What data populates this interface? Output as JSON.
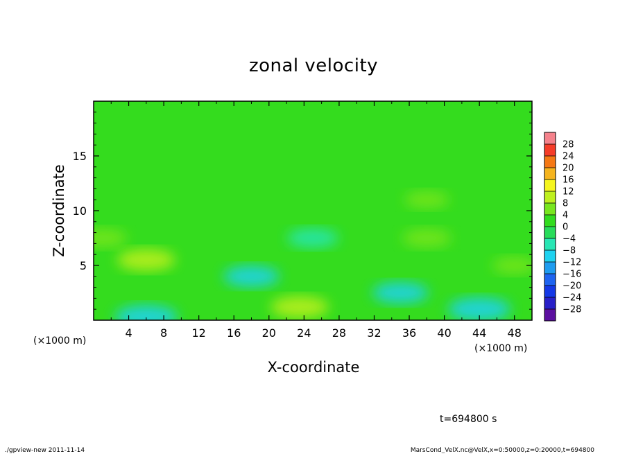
{
  "chart_data": {
    "type": "heatmap",
    "title": "zonal velocity",
    "xlabel": "X-coordinate",
    "ylabel": "Z-coordinate",
    "x_unit_label": "(×1000 m)",
    "y_unit_label": "(×1000 m)",
    "xlim": [
      0,
      50
    ],
    "ylim": [
      0,
      20
    ],
    "x_ticks": [
      "4",
      "8",
      "12",
      "16",
      "20",
      "24",
      "28",
      "32",
      "36",
      "40",
      "44",
      "48"
    ],
    "y_ticks": [
      "5",
      "10",
      "15"
    ],
    "colorbar": {
      "levels": [
        -32,
        -28,
        -24,
        -20,
        -16,
        -12,
        -8,
        -4,
        0,
        4,
        8,
        12,
        16,
        20,
        24,
        28,
        32
      ],
      "labels": [
        "28",
        "24",
        "20",
        "16",
        "12",
        "8",
        "4",
        "0",
        "−4",
        "−8",
        "−12",
        "−16",
        "−20",
        "−24",
        "−28"
      ],
      "colors": [
        "#5c0fa0",
        "#2820c8",
        "#1438e6",
        "#1e64f0",
        "#1e9cf0",
        "#1ed2f0",
        "#28e6b4",
        "#28dc5a",
        "#32dc1e",
        "#78e61e",
        "#bef01e",
        "#f5f51e",
        "#f5b41e",
        "#f57814",
        "#f53c28",
        "#f5828c"
      ]
    },
    "features": [
      {
        "x": 6,
        "z": 5.5,
        "value": 10
      },
      {
        "x": 23.5,
        "z": 1.2,
        "value": 10
      },
      {
        "x": 18,
        "z": 4,
        "value": -9
      },
      {
        "x": 25,
        "z": 7.5,
        "value": -7
      },
      {
        "x": 35,
        "z": 2.5,
        "value": -9
      },
      {
        "x": 44,
        "z": 1,
        "value": -12
      },
      {
        "x": 6,
        "z": 0.3,
        "value": -12
      },
      {
        "x": 38,
        "z": 7.5,
        "value": 6
      },
      {
        "x": 1,
        "z": 7.5,
        "value": 6
      },
      {
        "x": 38,
        "z": 11,
        "value": 4
      },
      {
        "x": 48,
        "z": 5,
        "value": 4
      }
    ],
    "annotation_time": "t=694800 s"
  },
  "footer": {
    "left": "./gpview-new  2011-11-14",
    "right": "MarsCond_VelX.nc@VelX,x=0:50000,z=0:20000,t=694800"
  }
}
